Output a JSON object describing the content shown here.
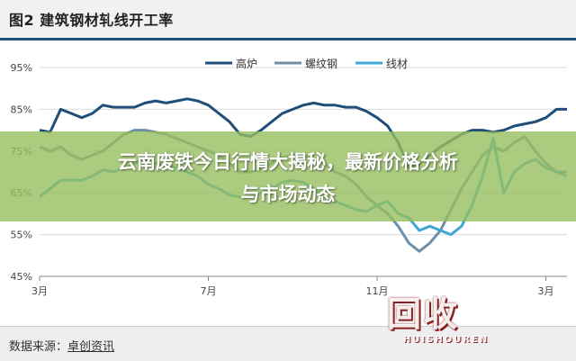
{
  "figure": {
    "title": "图2 建筑钢材轧线开工率"
  },
  "source": {
    "prefix": "数据来源：",
    "name": "卓创资讯"
  },
  "overlay": {
    "line1": "云南废铁今日行情大揭秘，最新价格分析",
    "line2": "与市场动态"
  },
  "watermark": {
    "text": "回收",
    "subtext": "HUISHOUREN"
  },
  "chart_data": {
    "type": "line",
    "title": "",
    "xlabel": "",
    "ylabel": "",
    "ylim": [
      45,
      95
    ],
    "yticks": [
      "45%",
      "55%",
      "65%",
      "75%",
      "85%",
      "95%"
    ],
    "xticks": [
      "3月",
      "7月",
      "11月",
      "3月"
    ],
    "grid": true,
    "legend_position": "top-center",
    "x": [
      "3月",
      "",
      "",
      "",
      "",
      "",
      "",
      "",
      "",
      "",
      "",
      "",
      "",
      "",
      "",
      "",
      "7月",
      "",
      "",
      "",
      "",
      "",
      "",
      "",
      "",
      "",
      "",
      "",
      "",
      "",
      "",
      "",
      "11月",
      "",
      "",
      "",
      "",
      "",
      "",
      "",
      "",
      "",
      "",
      "",
      "",
      "",
      "",
      "",
      "3月",
      "",
      ""
    ],
    "series": [
      {
        "name": "高炉",
        "color": "#1f4e79",
        "values": [
          80,
          79.5,
          85,
          84,
          83,
          84,
          86,
          85.5,
          85.5,
          85.5,
          86.5,
          87,
          86.5,
          87,
          87.5,
          87,
          86,
          84,
          82,
          79,
          78.5,
          80,
          82,
          84,
          85,
          86,
          86.5,
          86,
          86,
          85.5,
          85.5,
          84.5,
          83,
          81,
          77,
          71,
          72,
          74,
          76,
          77.5,
          79,
          80,
          80,
          79.5,
          80,
          81,
          81.5,
          82,
          83,
          85,
          85
        ]
      },
      {
        "name": "螺纹钢",
        "color": "#6f8fa8",
        "values": [
          76,
          75,
          76,
          74,
          73,
          74,
          75,
          77,
          79,
          80,
          80,
          79.5,
          79,
          78,
          77,
          76,
          75,
          74,
          72,
          70,
          70,
          71,
          72,
          73.5,
          74,
          74,
          73,
          72,
          70,
          69,
          67,
          64,
          62,
          60,
          57,
          53,
          51,
          53,
          56,
          61,
          66,
          70,
          74,
          76,
          75,
          77,
          78.5,
          75,
          72,
          70,
          70
        ]
      },
      {
        "name": "线材",
        "color": "#3fa7d6",
        "values": [
          64,
          66,
          68,
          68,
          68,
          69,
          70.5,
          70,
          71,
          72,
          73,
          72,
          71.5,
          71,
          70,
          69,
          67,
          66,
          64.5,
          64,
          64,
          65,
          66,
          67.5,
          68,
          67.5,
          66,
          64,
          63,
          62,
          61,
          60.5,
          62,
          63,
          60,
          59,
          56,
          57,
          56,
          55,
          57,
          62,
          69,
          78,
          65,
          70,
          72,
          73,
          71,
          70,
          69
        ]
      }
    ]
  }
}
